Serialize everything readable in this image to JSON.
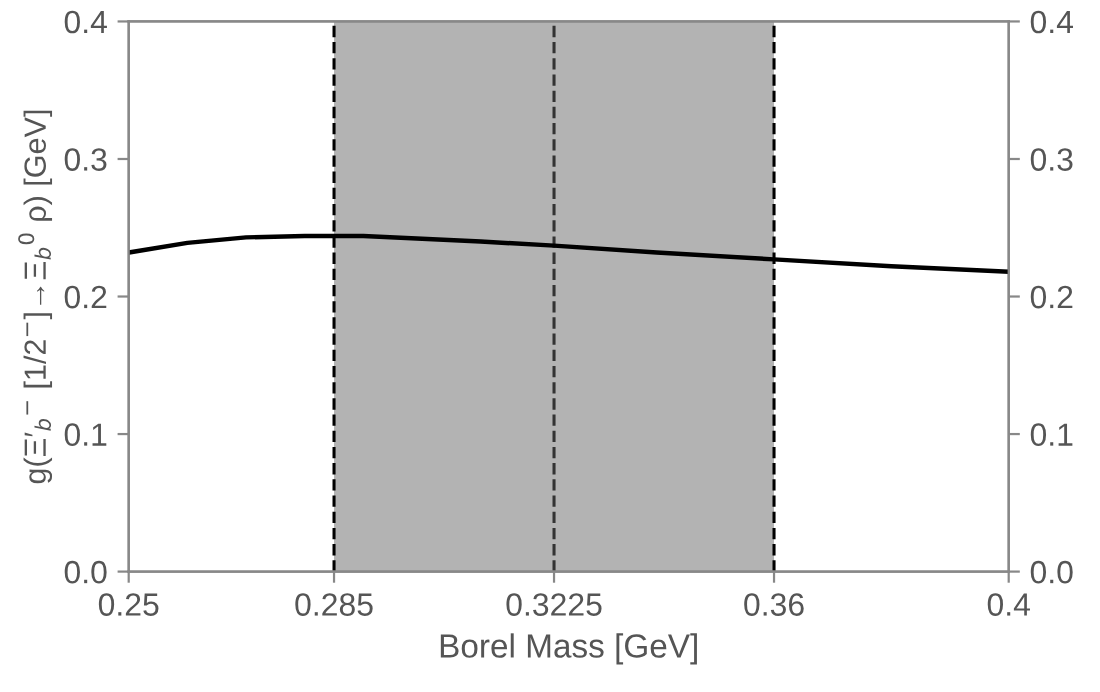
{
  "chart_data": {
    "type": "line",
    "xlabel": "Borel Mass [GeV]",
    "ylabel": "g(Ξ′$_{b}$$^{−}$ [1/2$^{−}$]→Ξ$_{b}$$^{0}$ ρ) [GeV]",
    "x": [
      0.25,
      0.26,
      0.27,
      0.28,
      0.29,
      0.3,
      0.31,
      0.3225,
      0.34,
      0.36,
      0.38,
      0.4
    ],
    "series": [
      {
        "color": "#000000",
        "values": [
          0.232,
          0.239,
          0.243,
          0.244,
          0.244,
          0.242,
          0.24,
          0.237,
          0.232,
          0.227,
          0.222,
          0.218
        ]
      }
    ],
    "xlim": [
      0.25,
      0.4
    ],
    "xticks": [
      0.25,
      0.285,
      0.3225,
      0.36,
      0.4
    ],
    "ylim": [
      0,
      0.4
    ],
    "yticks": [
      {
        "value": 0,
        "label": "0.0"
      },
      0.1,
      0.2,
      0.3,
      0.4
    ],
    "y2lim": [
      0,
      0.4
    ],
    "y2ticks": [
      {
        "value": 0,
        "label": "0.0"
      },
      0.1,
      0.2,
      0.3,
      0.4
    ],
    "bands": [
      {
        "axis": "x",
        "from": 0.285,
        "to": 0.36,
        "color": "#b3b3b3"
      }
    ],
    "ref_lines": [
      {
        "axis": "x",
        "value": 0.285,
        "line_style": "dashed",
        "color": "#000000"
      },
      {
        "axis": "x",
        "value": 0.3225,
        "line_style": "dashed",
        "color": "#333333"
      },
      {
        "axis": "x",
        "value": 0.36,
        "line_style": "dashed",
        "color": "#000000"
      }
    ],
    "grid": false,
    "legend": false,
    "marker": "none",
    "line_style": "solid"
  }
}
